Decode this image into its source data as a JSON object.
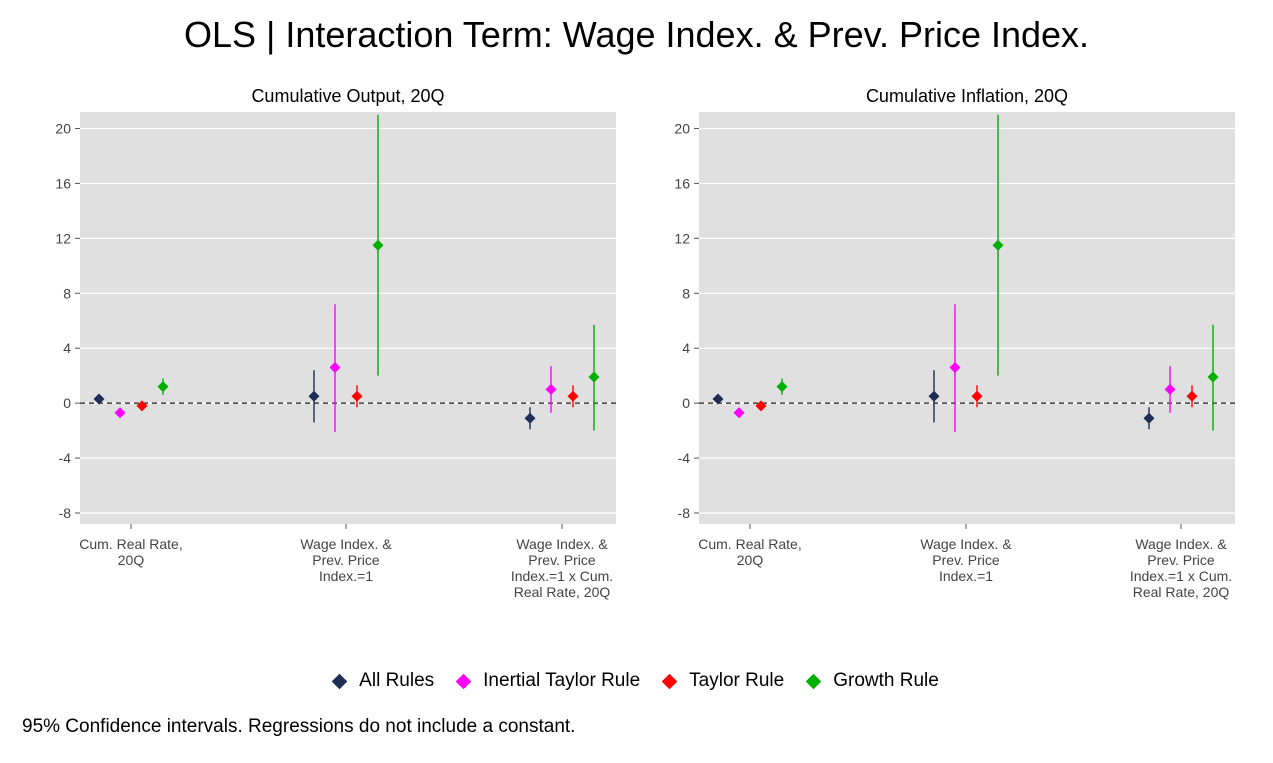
{
  "title": "OLS | Interaction Term: Wage Index. & Prev. Price Index.",
  "footnote": "95% Confidence intervals. Regressions do not include a constant.",
  "legend": [
    {
      "name": "All Rules",
      "color": "#1f2e57"
    },
    {
      "name": "Inertial Taylor Rule",
      "color": "#ff00ff"
    },
    {
      "name": "Taylor Rule",
      "color": "#ff0000"
    },
    {
      "name": "Growth Rule",
      "color": "#00b000"
    }
  ],
  "chart_data": [
    {
      "type": "scatter",
      "title": "Cumulative Output, 20Q",
      "categories": [
        [
          "Cum. Real Rate,",
          "20Q"
        ],
        [
          "Wage Index. &",
          "Prev. Price",
          "Index.=1"
        ],
        [
          "Wage Index. &",
          "Prev. Price",
          "Index.=1 x Cum.",
          "Real Rate, 20Q"
        ]
      ],
      "yticks": [
        -8,
        -4,
        0,
        4,
        8,
        12,
        16,
        20
      ],
      "ylim": [
        -8.8,
        21.2
      ],
      "grid": true,
      "reference_line": 0,
      "series": [
        {
          "name": "All Rules",
          "values": [
            0.3,
            0.5,
            -1.1
          ],
          "ci_low": [
            0.0,
            -1.4,
            -1.9
          ],
          "ci_high": [
            0.6,
            2.4,
            -0.3
          ]
        },
        {
          "name": "Inertial Taylor Rule",
          "values": [
            -0.7,
            2.6,
            1.0
          ],
          "ci_low": [
            -1.0,
            -2.1,
            -0.7
          ],
          "ci_high": [
            -0.4,
            7.2,
            2.7
          ]
        },
        {
          "name": "Taylor Rule",
          "values": [
            -0.2,
            0.5,
            0.5
          ],
          "ci_low": [
            -0.5,
            -0.3,
            -0.3
          ],
          "ci_high": [
            0.1,
            1.3,
            1.3
          ]
        },
        {
          "name": "Growth Rule",
          "values": [
            1.2,
            11.5,
            1.9
          ],
          "ci_low": [
            0.6,
            2.0,
            -2.0
          ],
          "ci_high": [
            1.8,
            21.0,
            5.7
          ]
        }
      ]
    },
    {
      "type": "scatter",
      "title": "Cumulative Inflation, 20Q",
      "categories": [
        [
          "Cum. Real Rate,",
          "20Q"
        ],
        [
          "Wage Index. &",
          "Prev. Price",
          "Index.=1"
        ],
        [
          "Wage Index. &",
          "Prev. Price",
          "Index.=1 x Cum.",
          "Real Rate, 20Q"
        ]
      ],
      "yticks": [
        -8,
        -4,
        0,
        4,
        8,
        12,
        16,
        20
      ],
      "ylim": [
        -8.8,
        21.2
      ],
      "grid": true,
      "reference_line": 0,
      "series": [
        {
          "name": "All Rules",
          "values": [
            0.3,
            0.5,
            -1.1
          ],
          "ci_low": [
            0.0,
            -1.4,
            -1.9
          ],
          "ci_high": [
            0.6,
            2.4,
            -0.3
          ]
        },
        {
          "name": "Inertial Taylor Rule",
          "values": [
            -0.7,
            2.6,
            1.0
          ],
          "ci_low": [
            -1.0,
            -2.1,
            -0.7
          ],
          "ci_high": [
            -0.4,
            7.2,
            2.7
          ]
        },
        {
          "name": "Taylor Rule",
          "values": [
            -0.2,
            0.5,
            0.5
          ],
          "ci_low": [
            -0.5,
            -0.3,
            -0.3
          ],
          "ci_high": [
            0.1,
            1.3,
            1.3
          ]
        },
        {
          "name": "Growth Rule",
          "values": [
            1.2,
            11.5,
            1.9
          ],
          "ci_low": [
            0.6,
            2.0,
            -2.0
          ],
          "ci_high": [
            1.8,
            21.0,
            5.7
          ]
        }
      ]
    }
  ]
}
